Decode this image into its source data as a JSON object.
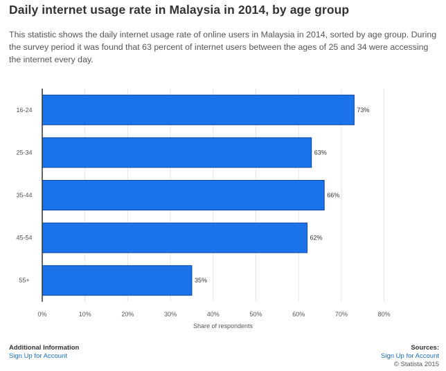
{
  "header": {
    "title": "Daily internet usage rate in Malaysia in 2014, by age group",
    "description": "This statistic shows the daily internet usage rate of online users in Malaysia in 2014, sorted by age group. During the survey period it was found that 63 percent of internet users between the ages of 25 and 34 were accessing the internet every day."
  },
  "chart_data": {
    "type": "bar",
    "orientation": "horizontal",
    "categories": [
      "16-24",
      "25-34",
      "35-44",
      "45-54",
      "55+"
    ],
    "values": [
      73,
      63,
      66,
      62,
      35
    ],
    "value_labels": [
      "73%",
      "63%",
      "66%",
      "62%",
      "35%"
    ],
    "xlabel": "Share of respondents",
    "ylabel": "",
    "xlim": [
      0,
      80
    ],
    "xticks": [
      "0%",
      "10%",
      "20%",
      "30%",
      "40%",
      "50%",
      "60%",
      "70%",
      "80%"
    ],
    "grid": true,
    "bar_color": "#1a73e8",
    "bar_border_color": "#0d47a1"
  },
  "footer": {
    "additional_info_label": "Additional Information",
    "additional_info_link": "Sign Up for Account",
    "sources_label": "Sources:",
    "sources_link": "Sign Up for Account",
    "copyright": "© Statista 2015"
  },
  "colors": {
    "link": "#1a6fc4",
    "axis": "#333333",
    "grid": "#e6e6e6"
  }
}
